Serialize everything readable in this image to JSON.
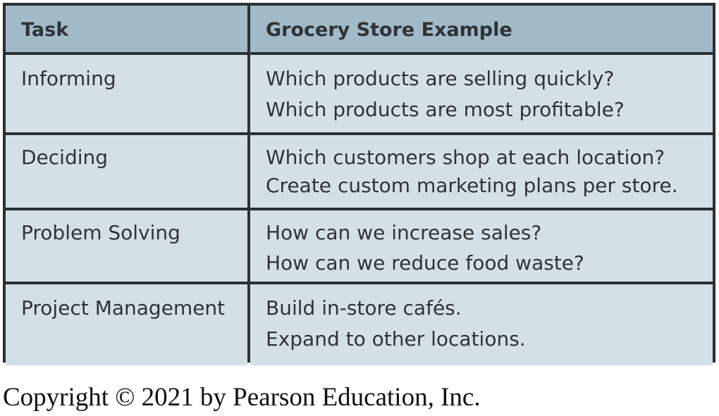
{
  "table": {
    "headers": {
      "task": "Task",
      "example": "Grocery Store Example"
    },
    "rows": [
      {
        "task": "Informing",
        "examples": [
          "Which products are selling quickly?",
          "Which products are most profitable?"
        ]
      },
      {
        "task": "Deciding",
        "examples": [
          "Which customers shop at each location?",
          "Create custom marketing plans per store."
        ]
      },
      {
        "task": "Problem Solving",
        "examples": [
          "How can we increase sales?",
          "How can we reduce food waste?"
        ]
      },
      {
        "task": "Project Management",
        "examples": [
          "Build in-store cafés.",
          "Expand to other locations."
        ]
      }
    ]
  },
  "copyright": "Copyright © 2021 by Pearson Education, Inc."
}
